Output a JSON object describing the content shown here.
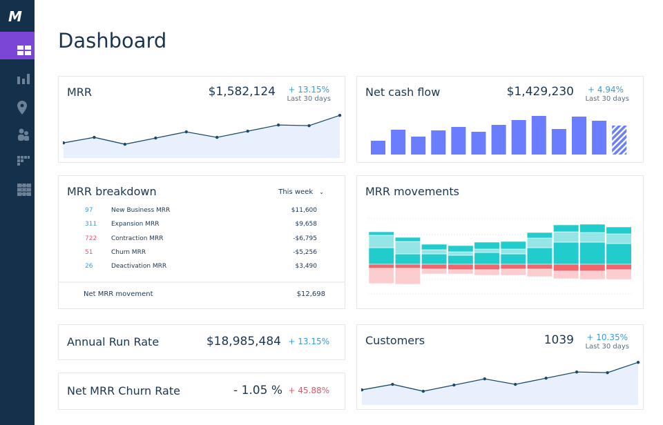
{
  "app": {
    "logo": "M",
    "title": "Dashboard"
  },
  "sidebar": {
    "items": [
      {
        "icon": "dashboard-icon",
        "active": true
      },
      {
        "icon": "bar-chart-icon"
      },
      {
        "icon": "location-pin-icon"
      },
      {
        "icon": "users-icon"
      },
      {
        "icon": "segments-icon"
      },
      {
        "icon": "table-icon"
      }
    ]
  },
  "colors": {
    "sidebar": "#15304a",
    "active": "#7b45d6",
    "positive": "#3a9bdc",
    "negative": "#e5546a",
    "bar": "#6a7dfe",
    "teal": "#22cbcc",
    "light_teal": "#96e5e6",
    "red": "#f2666b",
    "light_red": "#fbcdcf",
    "line": "#1c4a6a",
    "area": "#e8f0fd"
  },
  "mrr": {
    "title": "MRR",
    "value": "$1,582,124",
    "change": "+ 13.15%",
    "period": "Last 30 days"
  },
  "cash": {
    "title": "Net cash flow",
    "value": "$1,429,230",
    "change": "+ 4.94%",
    "period": "Last 30 days"
  },
  "breakdown": {
    "title": "MRR breakdown",
    "range": "This week",
    "rows": [
      {
        "count": "97",
        "label": "New Business MRR",
        "value": "$11,600",
        "negative": false
      },
      {
        "count": "311",
        "label": "Expansion MRR",
        "value": "$9,658",
        "negative": false
      },
      {
        "count": "722",
        "label": "Contraction MRR",
        "value": "-$6,795",
        "negative": true
      },
      {
        "count": "51",
        "label": "Churn MRR",
        "value": "-$5,256",
        "negative": true
      },
      {
        "count": "26",
        "label": "Deactivation MRR",
        "value": "$3,490",
        "negative": false
      }
    ],
    "net_label": "Net MRR movement",
    "net_value": "$12,698"
  },
  "movements": {
    "title": "MRR movements"
  },
  "arr": {
    "title": "Annual Run Rate",
    "value": "$18,985,484",
    "change": "+ 13.15%"
  },
  "churn": {
    "title": "Net MRR Churn Rate",
    "value": "- 1.05 %",
    "change": "+ 45.88%"
  },
  "customers": {
    "title": "Customers",
    "value": "1039",
    "change": "+ 10.35%",
    "period": "Last 30 days"
  },
  "chart_data": [
    {
      "type": "area",
      "name": "mrr",
      "values": [
        22,
        30,
        20,
        29,
        38,
        30,
        39,
        48,
        47,
        62
      ]
    },
    {
      "type": "bar",
      "name": "net-cash-flow",
      "values": [
        20,
        36,
        26,
        35,
        40,
        33,
        43,
        50,
        56,
        37,
        55,
        49,
        42
      ],
      "last_partial": true
    },
    {
      "type": "bar",
      "name": "mrr-movements",
      "stacked": true,
      "series": [
        {
          "key": "new",
          "values": [
            24,
            15,
            15,
            13,
            17,
            15,
            24,
            32,
            32,
            30
          ]
        },
        {
          "key": "expansion",
          "values": [
            18,
            18,
            6,
            5,
            5,
            7,
            14,
            15,
            14,
            14
          ]
        },
        {
          "key": "reactivation",
          "values": [
            5,
            6,
            8,
            9,
            10,
            11,
            8,
            10,
            12,
            10
          ]
        },
        {
          "key": "churn",
          "values": [
            -6,
            -6,
            -7,
            -8,
            -8,
            -7,
            -7,
            -10,
            -10,
            -8
          ]
        },
        {
          "key": "contraction",
          "values": [
            -22,
            -23,
            -7,
            -6,
            -8,
            -9,
            -11,
            -11,
            -12,
            -14
          ]
        }
      ]
    },
    {
      "type": "area",
      "name": "customers",
      "values": [
        22,
        30,
        20,
        29,
        38,
        30,
        39,
        48,
        47,
        62
      ]
    }
  ]
}
